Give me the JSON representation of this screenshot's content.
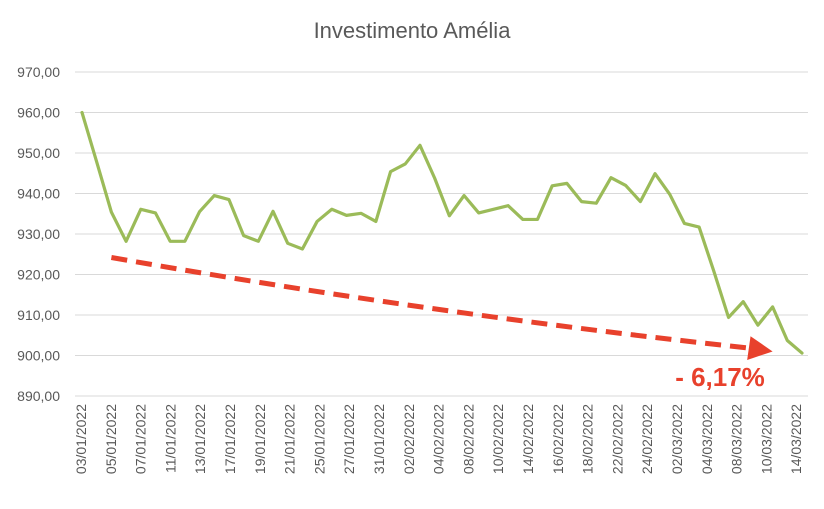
{
  "chart_data": {
    "type": "line",
    "title": "Investimento Amélia",
    "xlabel": "",
    "ylabel": "",
    "ylim": [
      890,
      970
    ],
    "y_ticks": [
      "890,00",
      "900,00",
      "910,00",
      "920,00",
      "930,00",
      "940,00",
      "950,00",
      "960,00",
      "970,00"
    ],
    "grid": true,
    "legend": "none",
    "x_tick_labels": [
      "03/01/2022",
      "05/01/2022",
      "07/01/2022",
      "11/01/2022",
      "13/01/2022",
      "17/01/2022",
      "19/01/2022",
      "21/01/2022",
      "25/01/2022",
      "27/01/2022",
      "31/01/2022",
      "02/02/2022",
      "04/02/2022",
      "08/02/2022",
      "10/02/2022",
      "14/02/2022",
      "16/02/2022",
      "18/02/2022",
      "22/02/2022",
      "24/02/2022",
      "02/03/2022",
      "04/03/2022",
      "08/03/2022",
      "10/03/2022",
      "14/03/2022"
    ],
    "series": [
      {
        "name": "",
        "color": "#9bbb59",
        "values": [
          960.0,
          947.8,
          935.4,
          928.2,
          936.1,
          935.2,
          928.2,
          928.2,
          935.5,
          939.5,
          938.5,
          929.6,
          928.2,
          935.6,
          927.7,
          926.3,
          933.1,
          936.1,
          934.6,
          935.1,
          933.1,
          945.4,
          947.3,
          951.9,
          943.8,
          934.5,
          939.5,
          935.2,
          936.1,
          937.0,
          933.6,
          933.6,
          941.9,
          942.5,
          938.0,
          937.6,
          943.9,
          942.0,
          938.0,
          944.9,
          939.8,
          932.6,
          931.7,
          920.8,
          909.4,
          913.3,
          907.5,
          912.0,
          903.7,
          900.6
        ]
      }
    ],
    "annotations": [
      {
        "type": "trend-arrow",
        "color": "#e8412c",
        "from": {
          "x_index": 2,
          "y": 924.2
        },
        "to": {
          "x_index": 47,
          "y": 901.0
        },
        "label": "- 6,17%"
      }
    ]
  }
}
